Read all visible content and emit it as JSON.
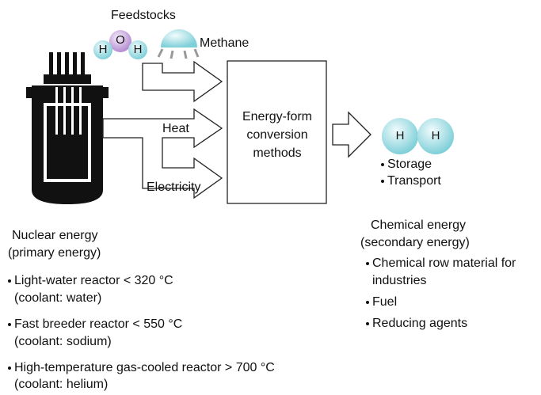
{
  "feedstocks": {
    "title": "Feedstocks",
    "water_atoms": [
      "H",
      "O",
      "H"
    ],
    "methane": "Methane"
  },
  "flows": {
    "heat": "Heat",
    "electricity": "Electricity"
  },
  "conversion_box": {
    "lines": [
      "Energy-form",
      "conversion",
      "methods"
    ]
  },
  "hydrogen": {
    "atoms": [
      "H",
      "H"
    ],
    "uses": [
      "Storage",
      "Transport"
    ]
  },
  "nuclear": {
    "title": [
      "Nuclear energy",
      "(primary energy)"
    ],
    "reactors": [
      {
        "name": "Light-water reactor < 320 °C",
        "coolant": "(coolant: water)"
      },
      {
        "name": "Fast breeder reactor < 550 °C",
        "coolant": "(coolant: sodium)"
      },
      {
        "name": "High-temperature gas-cooled reactor > 700 °C",
        "coolant": "(coolant: helium)"
      }
    ]
  },
  "chemical": {
    "title": [
      "Chemical energy",
      "(secondary energy)"
    ],
    "uses": [
      [
        "Chemical row material for",
        "industries"
      ],
      [
        "Fuel"
      ],
      [
        "Reducing agents"
      ]
    ]
  }
}
